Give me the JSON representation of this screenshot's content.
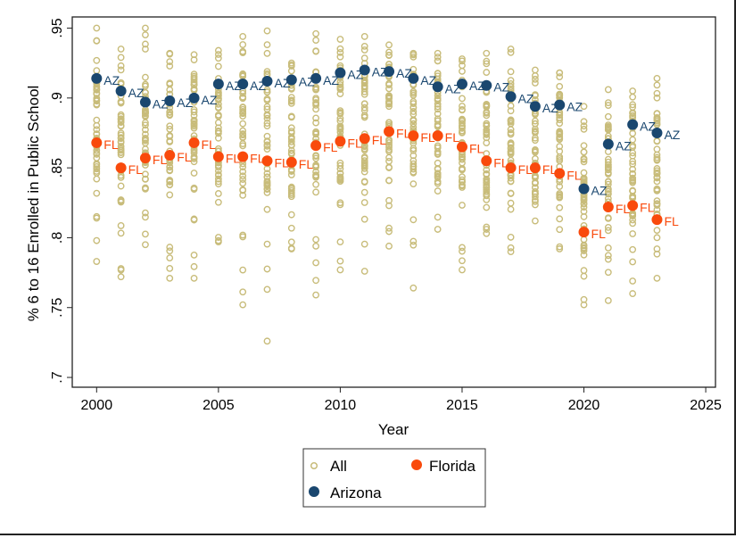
{
  "chart_data": {
    "type": "scatter",
    "title": "",
    "xlabel": "Year",
    "ylabel": "% 6 to 16 Enrolled in Public School",
    "xlim": [
      1999,
      2025.4
    ],
    "ylim": [
      0.693,
      0.958
    ],
    "xticks": [
      2000,
      2005,
      2010,
      2015,
      2020,
      2025
    ],
    "xtick_labels": [
      "2000",
      "2005",
      "2010",
      "2015",
      "2020",
      "2025"
    ],
    "yticks": [
      0.7,
      0.75,
      0.8,
      0.85,
      0.9,
      0.95
    ],
    "ytick_labels": [
      ".7",
      ".75",
      ".8",
      ".85",
      ".9",
      ".95"
    ],
    "grid": false,
    "legend": {
      "placement": "bottom",
      "entries": [
        {
          "label": "All",
          "color": "#C8BC7A",
          "marker": "hollow-circle"
        },
        {
          "label": "Florida",
          "color": "#F94A0C",
          "marker": "filled-circle"
        },
        {
          "label": "Arizona",
          "color": "#1A476F",
          "marker": "filled-circle"
        }
      ]
    },
    "years": [
      2000,
      2001,
      2002,
      2003,
      2004,
      2005,
      2006,
      2007,
      2008,
      2009,
      2010,
      2011,
      2012,
      2013,
      2014,
      2015,
      2016,
      2017,
      2018,
      2019,
      2020,
      2021,
      2022,
      2023
    ],
    "series": [
      {
        "name": "Arizona",
        "point_label": "AZ",
        "color": "#1A476F",
        "values": [
          0.914,
          0.905,
          0.897,
          0.898,
          0.9,
          0.91,
          0.91,
          0.912,
          0.913,
          0.914,
          0.918,
          0.92,
          0.919,
          0.914,
          0.908,
          0.91,
          0.909,
          0.901,
          0.894,
          0.895,
          0.835,
          0.867,
          0.881,
          0.875
        ]
      },
      {
        "name": "Florida",
        "point_label": "FL",
        "color": "#F94A0C",
        "values": [
          0.868,
          0.85,
          0.857,
          0.859,
          0.868,
          0.858,
          0.858,
          0.855,
          0.854,
          0.866,
          0.869,
          0.871,
          0.876,
          0.873,
          0.873,
          0.865,
          0.855,
          0.85,
          0.85,
          0.846,
          0.804,
          0.822,
          0.823,
          0.813
        ]
      }
    ],
    "all_states_range": {
      "name": "All",
      "color": "#C8BC7A",
      "min": [
        0.783,
        0.772,
        0.795,
        0.771,
        0.771,
        0.797,
        0.752,
        0.726,
        0.792,
        0.759,
        0.777,
        0.776,
        0.794,
        0.764,
        0.806,
        0.777,
        0.803,
        0.79,
        0.812,
        0.792,
        0.752,
        0.755,
        0.76,
        0.771
      ],
      "max": [
        0.95,
        0.935,
        0.95,
        0.932,
        0.931,
        0.934,
        0.944,
        0.948,
        0.925,
        0.946,
        0.942,
        0.944,
        0.938,
        0.932,
        0.932,
        0.928,
        0.932,
        0.935,
        0.92,
        0.918,
        0.894,
        0.906,
        0.905,
        0.914
      ],
      "core_low": [
        0.832,
        0.825,
        0.835,
        0.83,
        0.832,
        0.835,
        0.83,
        0.83,
        0.828,
        0.832,
        0.84,
        0.838,
        0.84,
        0.842,
        0.843,
        0.835,
        0.83,
        0.828,
        0.83,
        0.825,
        0.79,
        0.805,
        0.81,
        0.81
      ],
      "core_high": [
        0.922,
        0.915,
        0.915,
        0.912,
        0.915,
        0.918,
        0.918,
        0.918,
        0.918,
        0.922,
        0.925,
        0.925,
        0.925,
        0.922,
        0.92,
        0.918,
        0.918,
        0.912,
        0.908,
        0.905,
        0.868,
        0.885,
        0.892,
        0.892
      ]
    }
  }
}
